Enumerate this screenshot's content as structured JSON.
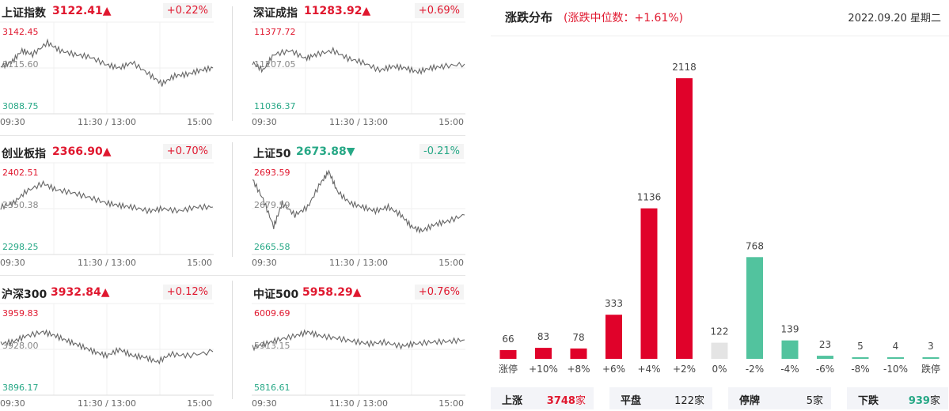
{
  "indices": [
    {
      "name": "上证指数",
      "value": "3122.41",
      "arrow": "▲",
      "change": "+0.22%",
      "dir": "up",
      "y_labels": [
        "3142.45",
        "3115.60",
        "3088.75"
      ],
      "x_labels": [
        "09:30",
        "11:30 / 13:00",
        "15:00"
      ]
    },
    {
      "name": "深证成指",
      "value": "11283.92",
      "arrow": "▲",
      "change": "+0.69%",
      "dir": "up",
      "y_labels": [
        "11377.72",
        "11207.05",
        "11036.37"
      ],
      "x_labels": [
        "09:30",
        "11:30 / 13:00",
        "15:00"
      ]
    },
    {
      "name": "创业板指",
      "value": "2366.90",
      "arrow": "▲",
      "change": "+0.70%",
      "dir": "up",
      "y_labels": [
        "2402.51",
        "2350.38",
        "2298.25"
      ],
      "x_labels": [
        "09:30",
        "11:30 / 13:00",
        "15:00"
      ]
    },
    {
      "name": "上证50",
      "value": "2673.88",
      "arrow": "▼",
      "change": "-0.21%",
      "dir": "down",
      "y_labels": [
        "2693.59",
        "2679.59",
        "2665.58"
      ],
      "x_labels": [
        "09:30",
        "11:30 / 13:00",
        "15:00"
      ]
    },
    {
      "name": "沪深300",
      "value": "3932.84",
      "arrow": "▲",
      "change": "+0.12%",
      "dir": "up",
      "y_labels": [
        "3959.83",
        "3928.00",
        "3896.17"
      ],
      "x_labels": [
        "09:30",
        "11:30 / 13:00",
        "15:00"
      ]
    },
    {
      "name": "中证500",
      "value": "5958.29",
      "arrow": "▲",
      "change": "+0.76%",
      "dir": "up",
      "y_labels": [
        "6009.69",
        "5913.15",
        "5816.61"
      ],
      "x_labels": [
        "09:30",
        "11:30 / 13:00",
        "15:00"
      ]
    }
  ],
  "distribution": {
    "title": "涨跌分布",
    "subtitle": "(涨跌中位数：+1.61%)",
    "date": "2022.09.20 星期二"
  },
  "chart_data": {
    "type": "bar",
    "categories": [
      "涨停",
      "+10%",
      "+8%",
      "+6%",
      "+4%",
      "+2%",
      "0%",
      "-2%",
      "-4%",
      "-6%",
      "-8%",
      "-10%",
      "跌停"
    ],
    "values": [
      66,
      83,
      78,
      333,
      1136,
      2118,
      122,
      768,
      139,
      23,
      5,
      4,
      3
    ],
    "ylim": [
      0,
      2118
    ],
    "colors": [
      "#e0022a",
      "#e0022a",
      "#e0022a",
      "#e0022a",
      "#e0022a",
      "#e0022a",
      "#e4e4e4",
      "#52c39e",
      "#52c39e",
      "#52c39e",
      "#52c39e",
      "#52c39e",
      "#52c39e"
    ]
  },
  "summary": [
    {
      "label": "上涨",
      "value": "3748",
      "unit": "家"
    },
    {
      "label": "平盘",
      "value": "122",
      "unit": "家"
    },
    {
      "label": "停牌",
      "value": "5",
      "unit": "家"
    },
    {
      "label": "下跌",
      "value": "939",
      "unit": "家"
    }
  ],
  "colors": {
    "up": "#e0182f",
    "down": "#27a886",
    "line": "#666666"
  }
}
